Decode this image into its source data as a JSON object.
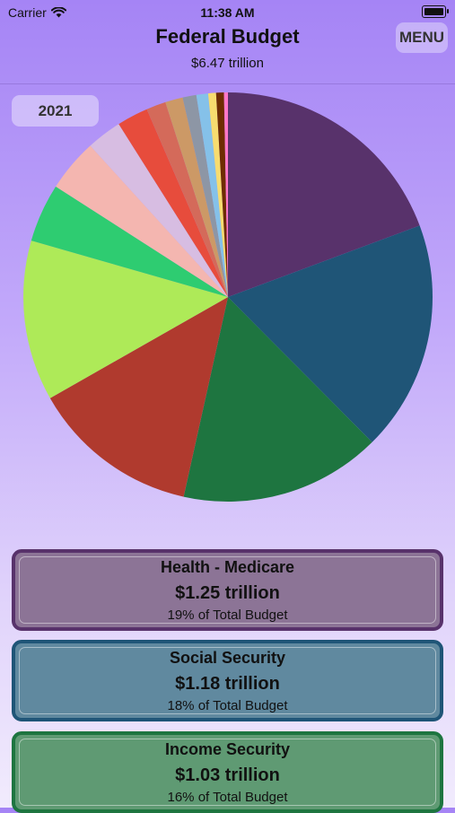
{
  "status_bar": {
    "carrier": "Carrier",
    "time": "11:38 AM"
  },
  "header": {
    "title": "Federal Budget",
    "total": "$6.47 trillion",
    "menu_label": "MENU"
  },
  "year_label": "2021",
  "colors": {
    "medicare": "#58326b",
    "social_security": "#1f5577",
    "income_security": "#1e7540",
    "accent": "#a584f5"
  },
  "chart_data": {
    "type": "pie",
    "unit": "trillion USD",
    "slices": [
      {
        "label": "Health - Medicare",
        "value": 1.25,
        "color": "#58326b"
      },
      {
        "label": "Social Security",
        "value": 1.18,
        "color": "#1f5577"
      },
      {
        "label": "Income Security",
        "value": 1.03,
        "color": "#1e7540"
      },
      {
        "value": 0.86,
        "color": "#b03a2e"
      },
      {
        "value": 0.82,
        "color": "#aeea58"
      },
      {
        "value": 0.3,
        "color": "#2ecc71"
      },
      {
        "value": 0.27,
        "color": "#f4b6b0"
      },
      {
        "value": 0.18,
        "color": "#d7bde2"
      },
      {
        "value": 0.16,
        "color": "#e74c3c"
      },
      {
        "value": 0.1,
        "color": "#d46a5a"
      },
      {
        "value": 0.09,
        "color": "#cc9966"
      },
      {
        "value": 0.07,
        "color": "#8d96a5"
      },
      {
        "value": 0.06,
        "color": "#85c1e9"
      },
      {
        "value": 0.04,
        "color": "#f7dc6f"
      },
      {
        "value": 0.04,
        "color": "#6e2c00"
      },
      {
        "value": 0.02,
        "color": "#ff77c8"
      }
    ]
  },
  "cards": [
    {
      "name": "Health - Medicare",
      "amount": "$1.25 trillion",
      "percent": "19% of Total Budget",
      "border": "#58326b",
      "fill": "#8c7496"
    },
    {
      "name": "Social Security",
      "amount": "$1.18 trillion",
      "percent": "18% of Total Budget",
      "border": "#1f5577",
      "fill": "#60899f"
    },
    {
      "name": "Income Security",
      "amount": "$1.03 trillion",
      "percent": "16% of Total Budget",
      "border": "#1e7540",
      "fill": "#5f9a73"
    }
  ]
}
